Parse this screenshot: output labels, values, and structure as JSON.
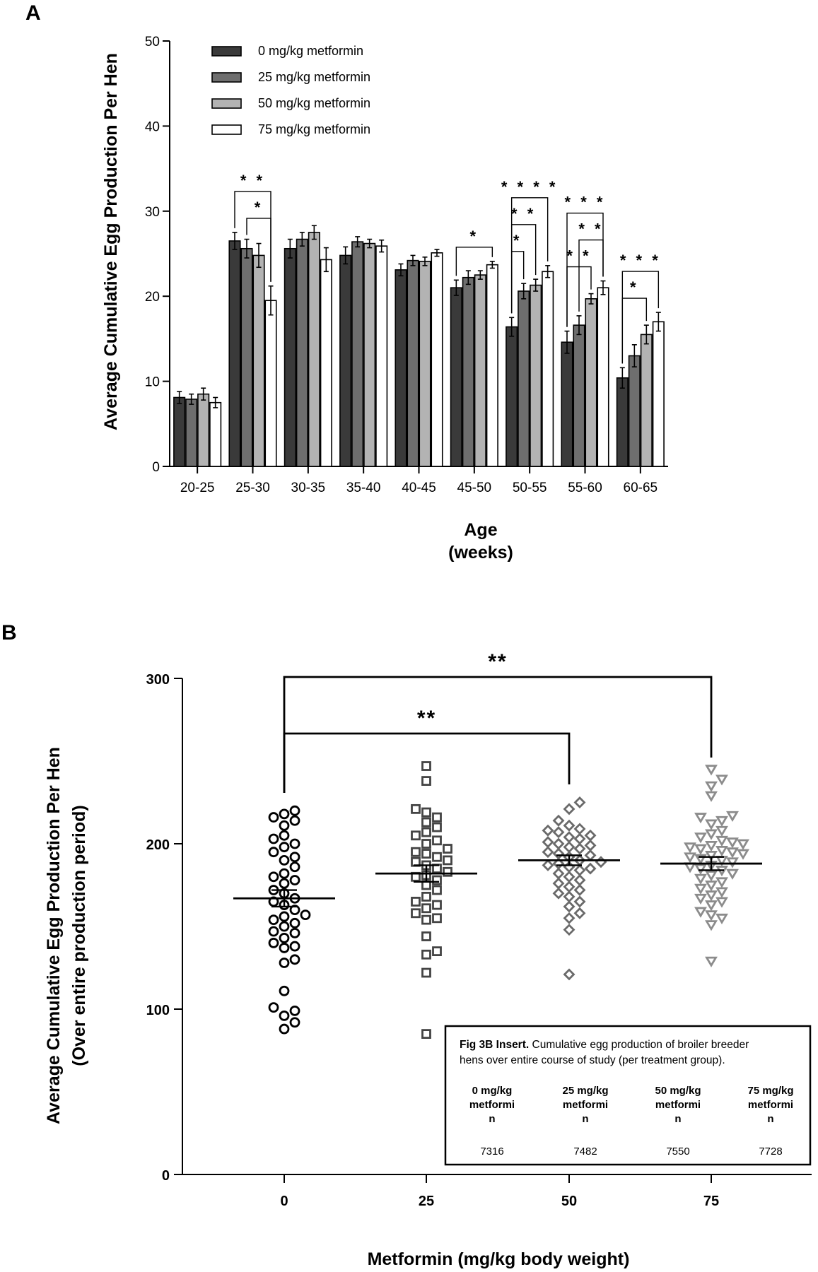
{
  "chart_data": [
    {
      "panel": "A",
      "type": "bar",
      "ylabel": "Average Cumulative Egg Production Per Hen",
      "xlabel": "Age",
      "xlabel_units": "(weeks)",
      "ylim": [
        0,
        50
      ],
      "yticks": [
        0,
        10,
        20,
        30,
        40,
        50
      ],
      "categories": [
        "20-25",
        "25-30",
        "30-35",
        "35-40",
        "40-45",
        "45-50",
        "50-55",
        "55-60",
        "60-65"
      ],
      "series": [
        {
          "name": "0 mg/kg metformin",
          "color": "#3a3a3a",
          "values": [
            8.1,
            26.5,
            25.6,
            24.8,
            23.1,
            21.0,
            16.4,
            14.6,
            10.4
          ],
          "errors": [
            0.7,
            1.0,
            1.1,
            1.0,
            0.7,
            0.9,
            1.1,
            1.3,
            1.2
          ]
        },
        {
          "name": "25 mg/kg metformin",
          "color": "#6e6e6e",
          "values": [
            7.9,
            25.6,
            26.7,
            26.4,
            24.2,
            22.2,
            20.6,
            16.6,
            13.0
          ],
          "errors": [
            0.6,
            1.1,
            0.8,
            0.6,
            0.6,
            0.8,
            0.9,
            1.1,
            1.3
          ]
        },
        {
          "name": "50 mg/kg metformin",
          "color": "#b3b3b3",
          "values": [
            8.5,
            24.8,
            27.5,
            26.2,
            24.1,
            22.5,
            21.3,
            19.7,
            15.5
          ],
          "errors": [
            0.7,
            1.4,
            0.8,
            0.5,
            0.5,
            0.5,
            0.7,
            0.6,
            1.1
          ]
        },
        {
          "name": "75 mg/kg metformin",
          "color": "#ffffff",
          "values": [
            7.5,
            19.5,
            24.3,
            25.9,
            25.1,
            23.7,
            22.9,
            21.0,
            17.0
          ],
          "errors": [
            0.6,
            1.7,
            1.4,
            0.7,
            0.4,
            0.4,
            0.7,
            0.8,
            1.1
          ]
        }
      ],
      "significance": [
        {
          "category": "25-30",
          "from": 0,
          "to": 3,
          "label": "* *"
        },
        {
          "category": "25-30",
          "from": 1,
          "to": 3,
          "label": "*"
        },
        {
          "category": "45-50",
          "from": 0,
          "to": 3,
          "label": "*"
        },
        {
          "category": "50-55",
          "from": 0,
          "to": 3,
          "label": "* * * *"
        },
        {
          "category": "50-55",
          "from": 0,
          "to": 2,
          "label": "* *"
        },
        {
          "category": "50-55",
          "from": 0,
          "to": 1,
          "label": "*"
        },
        {
          "category": "55-60",
          "from": 0,
          "to": 3,
          "label": "* * *"
        },
        {
          "category": "55-60",
          "from": 1,
          "to": 3,
          "label": "* *"
        },
        {
          "category": "55-60",
          "from": 0,
          "to": 2,
          "label": "* *"
        },
        {
          "category": "60-65",
          "from": 0,
          "to": 3,
          "label": "* * *"
        },
        {
          "category": "60-65",
          "from": 0,
          "to": 2,
          "label": "*"
        }
      ]
    },
    {
      "panel": "B",
      "type": "scatter",
      "ylabel": "Average Cumulative Egg Production Per Hen",
      "ylabel2": "(Over entire production period)",
      "xlabel": "Metformin (mg/kg body weight)",
      "ylim": [
        0,
        300
      ],
      "yticks": [
        0,
        100,
        200,
        300
      ],
      "categories": [
        "0",
        "25",
        "50",
        "75"
      ],
      "groups": [
        {
          "name": "0",
          "marker": "circle",
          "color": "#000000",
          "mean": 167,
          "sem": 5,
          "points": [
            88,
            92,
            96,
            99,
            101,
            111,
            128,
            130,
            137,
            138,
            140,
            143,
            146,
            147,
            150,
            152,
            154,
            156,
            157,
            160,
            163,
            165,
            167,
            170,
            172,
            176,
            178,
            180,
            182,
            186,
            190,
            192,
            195,
            198,
            200,
            203,
            205,
            211,
            214,
            216,
            218,
            220
          ]
        },
        {
          "name": "25",
          "marker": "square",
          "color": "#444444",
          "mean": 182,
          "sem": 5,
          "points": [
            85,
            122,
            133,
            135,
            144,
            154,
            155,
            158,
            161,
            163,
            165,
            168,
            172,
            175,
            178,
            180,
            181,
            183,
            185,
            187,
            189,
            190,
            192,
            194,
            195,
            197,
            200,
            202,
            205,
            207,
            210,
            213,
            216,
            219,
            221,
            238,
            247
          ]
        },
        {
          "name": "50",
          "marker": "diamond",
          "color": "#6a6a6a",
          "mean": 190,
          "sem": 3,
          "points": [
            121,
            148,
            155,
            158,
            162,
            165,
            168,
            170,
            172,
            174,
            176,
            178,
            180,
            182,
            184,
            185,
            186,
            187,
            188,
            189,
            190,
            192,
            193,
            194,
            195,
            197,
            198,
            199,
            200,
            201,
            203,
            204,
            205,
            207,
            208,
            209,
            211,
            214,
            221,
            225
          ]
        },
        {
          "name": "75",
          "marker": "triangle",
          "color": "#8c8c8c",
          "mean": 188,
          "sem": 4,
          "points": [
            129,
            151,
            155,
            157,
            159,
            163,
            165,
            167,
            169,
            171,
            173,
            175,
            177,
            179,
            181,
            182,
            184,
            185,
            186,
            187,
            189,
            190,
            191,
            192,
            193,
            194,
            195,
            196,
            197,
            198,
            199,
            200,
            201,
            202,
            204,
            206,
            208,
            212,
            214,
            216,
            217,
            229,
            235,
            239,
            245
          ]
        }
      ],
      "significance": [
        {
          "from": "0",
          "to": "75",
          "label": "**"
        },
        {
          "from": "0",
          "to": "50",
          "label": "**"
        }
      ],
      "insert": {
        "title_bold": "Fig 3B Insert.",
        "title_rest": "Cumulative egg production of broiler breeder",
        "title_line2": "hens over entire course of study (per treatment group).",
        "columns": [
          {
            "lines": [
              "0 mg/kg",
              "metformi",
              "n"
            ],
            "value": "7316"
          },
          {
            "lines": [
              "25 mg/kg",
              "metformi",
              "n"
            ],
            "value": "7482"
          },
          {
            "lines": [
              "50 mg/kg",
              "metformi",
              "n"
            ],
            "value": "7550"
          },
          {
            "lines": [
              "75 mg/kg",
              "metformi",
              "n"
            ],
            "value": "7728"
          }
        ]
      }
    }
  ],
  "panels": {
    "a_label": "A",
    "b_label": "B"
  }
}
